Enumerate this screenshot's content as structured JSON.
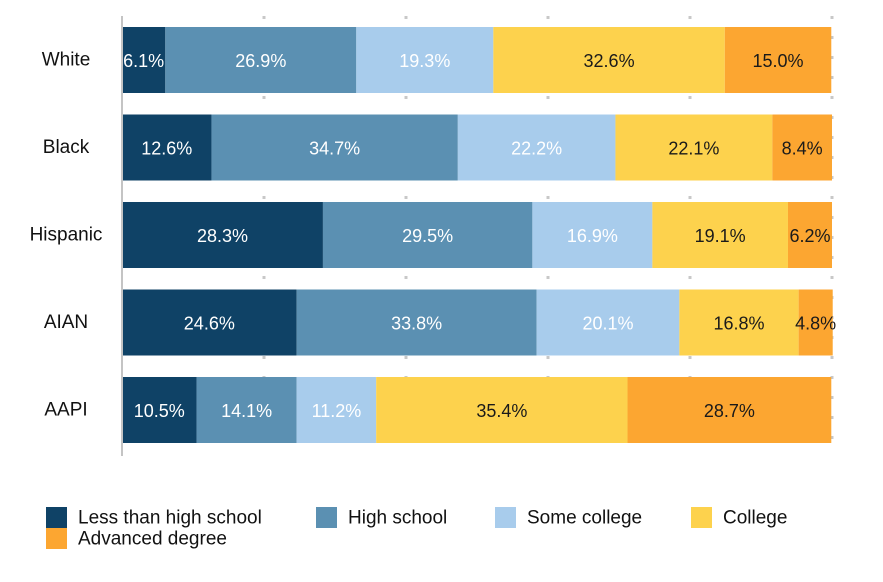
{
  "chart_data": {
    "type": "bar",
    "orientation": "horizontal",
    "stacked": true,
    "title": "",
    "xlabel": "",
    "ylabel": "",
    "xlim": [
      0,
      100
    ],
    "grid": true,
    "legend_position": "bottom",
    "categories": [
      "White",
      "Black",
      "Hispanic",
      "AIAN",
      "AAPI"
    ],
    "series": [
      {
        "name": "Less than high school",
        "color": "#0f4266",
        "label_color": "#ffffff",
        "values": [
          6.1,
          12.6,
          28.3,
          24.6,
          10.5
        ],
        "labels": [
          "6.1%",
          "12.6%",
          "28.3%",
          "24.6%",
          "10.5%"
        ]
      },
      {
        "name": "High school",
        "color": "#5b90b2",
        "label_color": "#ffffff",
        "values": [
          26.9,
          34.7,
          29.5,
          33.8,
          14.1
        ],
        "labels": [
          "26.9%",
          "34.7%",
          "29.5%",
          "33.8%",
          "14.1%"
        ]
      },
      {
        "name": "Some college",
        "color": "#a8ccec",
        "label_color": "#ffffff",
        "values": [
          19.3,
          22.2,
          16.9,
          20.1,
          11.2
        ],
        "labels": [
          "19.3%",
          "22.2%",
          "16.9%",
          "20.1%",
          "11.2%"
        ]
      },
      {
        "name": "College",
        "color": "#fdd24d",
        "label_color": "#1a1a1a",
        "values": [
          32.6,
          22.1,
          19.1,
          16.8,
          35.4
        ],
        "labels": [
          "32.6%",
          "22.1%",
          "19.1%",
          "16.8%",
          "35.4%"
        ]
      },
      {
        "name": "Advanced degree",
        "color": "#fca631",
        "label_color": "#1a1a1a",
        "values": [
          15.0,
          8.4,
          6.2,
          4.8,
          28.7
        ],
        "labels": [
          "15.0%",
          "8.4%",
          "6.2%",
          "4.8%",
          "28.7%"
        ]
      }
    ]
  }
}
